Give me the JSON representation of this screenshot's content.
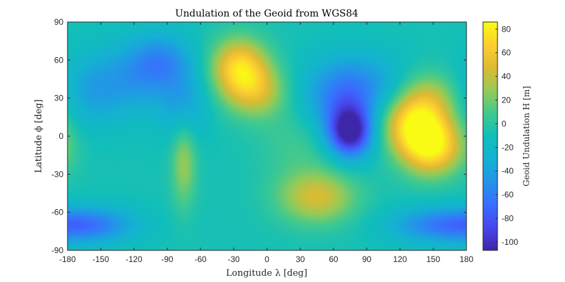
{
  "chart_data": {
    "type": "heatmap",
    "title": "Undulation of the Geoid from WGS84",
    "xlabel": "Longitude λ [deg]",
    "ylabel": "Latitude ϕ [deg]",
    "colorbar_label": "Geoid Undulation H [m]",
    "xlim": [
      -180,
      180
    ],
    "ylim": [
      -90,
      90
    ],
    "xticks": [
      -180,
      -150,
      -120,
      -90,
      -60,
      -30,
      0,
      30,
      60,
      90,
      120,
      150,
      180
    ],
    "yticks": [
      -90,
      -60,
      -30,
      0,
      30,
      60,
      90
    ],
    "clim": [
      -107,
      86
    ],
    "cticks": [
      -100,
      -80,
      -60,
      -40,
      -20,
      0,
      20,
      40,
      60,
      80
    ],
    "colormap": "parula",
    "background_value": -8,
    "features": [
      {
        "lon": 75,
        "lat": 3,
        "value": -106,
        "spread_lon": 14,
        "spread_lat": 14
      },
      {
        "lon": 65,
        "lat": 25,
        "value": -45,
        "spread_lon": 25,
        "spread_lat": 22
      },
      {
        "lon": 85,
        "lat": 40,
        "value": -40,
        "spread_lon": 30,
        "spread_lat": 18
      },
      {
        "lon": 148,
        "lat": -8,
        "value": 82,
        "spread_lon": 20,
        "spread_lat": 16
      },
      {
        "lon": 130,
        "lat": 10,
        "value": 55,
        "spread_lon": 20,
        "spread_lat": 15
      },
      {
        "lon": 145,
        "lat": 30,
        "value": 35,
        "spread_lon": 20,
        "spread_lat": 15
      },
      {
        "lon": -25,
        "lat": 55,
        "value": 65,
        "spread_lon": 18,
        "spread_lat": 16
      },
      {
        "lon": -10,
        "lat": 35,
        "value": 40,
        "spread_lon": 20,
        "spread_lat": 15
      },
      {
        "lon": 45,
        "lat": -48,
        "value": 45,
        "spread_lon": 25,
        "spread_lat": 15
      },
      {
        "lon": -160,
        "lat": 35,
        "value": -35,
        "spread_lon": 20,
        "spread_lat": 20
      },
      {
        "lon": -120,
        "lat": 45,
        "value": -40,
        "spread_lon": 25,
        "spread_lat": 20
      },
      {
        "lon": -95,
        "lat": 60,
        "value": -45,
        "spread_lon": 20,
        "spread_lat": 15
      },
      {
        "lon": -75,
        "lat": 25,
        "value": -40,
        "spread_lon": 15,
        "spread_lat": 20
      },
      {
        "lon": -160,
        "lat": -70,
        "value": -60,
        "spread_lon": 30,
        "spread_lat": 10
      },
      {
        "lon": 150,
        "lat": -70,
        "value": -50,
        "spread_lon": 30,
        "spread_lat": 10
      },
      {
        "lon": -75,
        "lat": -20,
        "value": 30,
        "spread_lon": 8,
        "spread_lat": 25
      },
      {
        "lon": 30,
        "lat": -5,
        "value": 10,
        "spread_lon": 25,
        "spread_lat": 20
      }
    ]
  }
}
